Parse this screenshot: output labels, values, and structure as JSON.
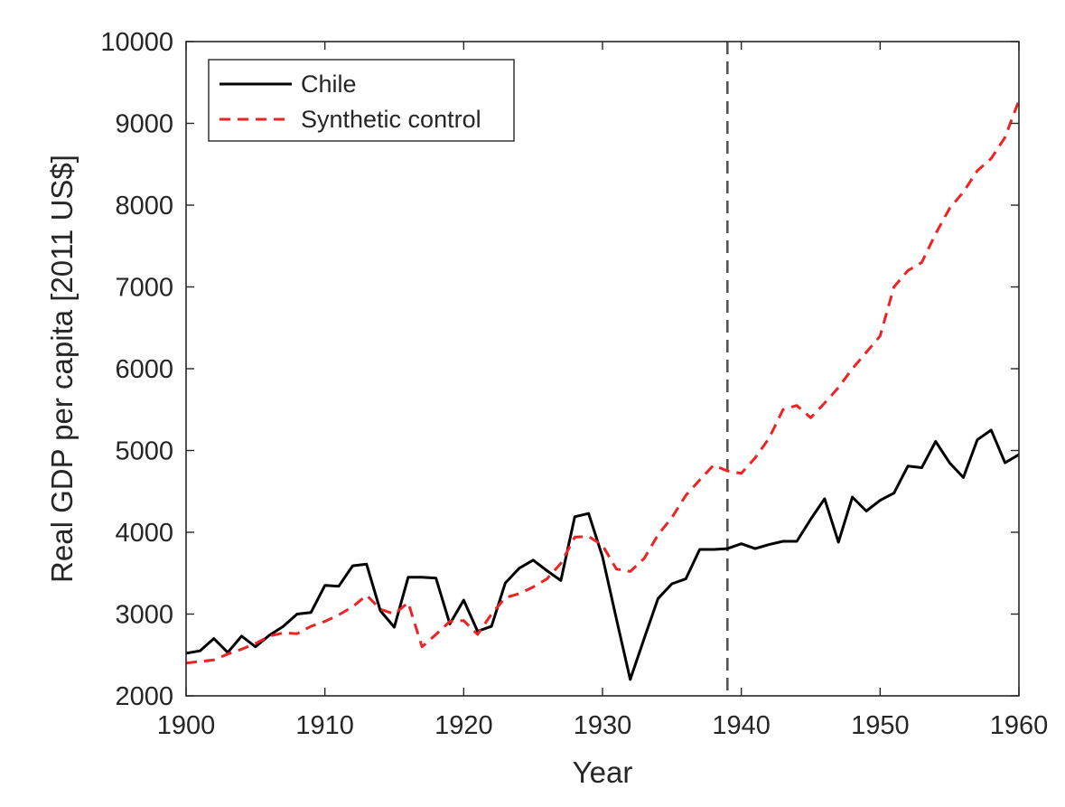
{
  "chart_data": {
    "type": "line",
    "xlabel": "Year",
    "ylabel": "Real GDP per capita [2011 US$]",
    "xlim": [
      1900,
      1960
    ],
    "ylim": [
      2000,
      10000
    ],
    "xticks": [
      1900,
      1910,
      1920,
      1930,
      1940,
      1950,
      1960
    ],
    "yticks": [
      2000,
      3000,
      4000,
      5000,
      6000,
      7000,
      8000,
      9000,
      10000
    ],
    "grid": false,
    "legend_position": "top-left",
    "vertical_reference_line": {
      "x": 1939,
      "style": "dashed",
      "color": "#555555"
    },
    "series": [
      {
        "name": "Chile",
        "color": "#000000",
        "style": "solid",
        "x": [
          1900,
          1901,
          1902,
          1903,
          1904,
          1905,
          1906,
          1907,
          1908,
          1909,
          1910,
          1911,
          1912,
          1913,
          1914,
          1915,
          1916,
          1917,
          1918,
          1919,
          1920,
          1921,
          1922,
          1923,
          1924,
          1925,
          1926,
          1927,
          1928,
          1929,
          1930,
          1931,
          1932,
          1933,
          1934,
          1935,
          1936,
          1937,
          1938,
          1939,
          1940,
          1941,
          1942,
          1943,
          1944,
          1945,
          1946,
          1947,
          1948,
          1949,
          1950,
          1951,
          1952,
          1953,
          1954,
          1955,
          1956,
          1957,
          1958,
          1959,
          1960
        ],
        "y": [
          2520,
          2550,
          2700,
          2530,
          2730,
          2600,
          2740,
          2850,
          3000,
          3020,
          3350,
          3340,
          3590,
          3610,
          3040,
          2840,
          3450,
          3450,
          3440,
          2880,
          3170,
          2790,
          2850,
          3380,
          3560,
          3660,
          3530,
          3410,
          4190,
          4230,
          3700,
          2940,
          2200,
          2700,
          3190,
          3370,
          3430,
          3790,
          3790,
          3800,
          3860,
          3800,
          3850,
          3890,
          3890,
          4160,
          4410,
          3880,
          4430,
          4260,
          4390,
          4480,
          4810,
          4790,
          5110,
          4850,
          4670,
          5130,
          5250,
          4850,
          4950
        ]
      },
      {
        "name": "Synthetic control",
        "color": "#ee2222",
        "style": "dashed",
        "x": [
          1900,
          1901,
          1902,
          1903,
          1904,
          1905,
          1906,
          1907,
          1908,
          1909,
          1910,
          1911,
          1912,
          1913,
          1914,
          1915,
          1916,
          1917,
          1918,
          1919,
          1920,
          1921,
          1922,
          1923,
          1924,
          1925,
          1926,
          1927,
          1928,
          1929,
          1930,
          1931,
          1932,
          1933,
          1934,
          1935,
          1936,
          1937,
          1938,
          1939,
          1940,
          1941,
          1942,
          1943,
          1944,
          1945,
          1946,
          1947,
          1948,
          1949,
          1950,
          1951,
          1952,
          1953,
          1954,
          1955,
          1956,
          1957,
          1958,
          1959,
          1960
        ],
        "y": [
          2400,
          2420,
          2440,
          2510,
          2570,
          2640,
          2730,
          2770,
          2760,
          2850,
          2910,
          2990,
          3090,
          3230,
          3060,
          3000,
          3140,
          2600,
          2750,
          2910,
          2920,
          2750,
          3000,
          3200,
          3250,
          3330,
          3430,
          3620,
          3940,
          3950,
          3840,
          3550,
          3520,
          3680,
          3970,
          4180,
          4450,
          4640,
          4820,
          4750,
          4720,
          4910,
          5150,
          5500,
          5550,
          5400,
          5580,
          5770,
          6000,
          6200,
          6400,
          7000,
          7200,
          7300,
          7650,
          7960,
          8160,
          8420,
          8570,
          8830,
          9280
        ]
      }
    ]
  }
}
